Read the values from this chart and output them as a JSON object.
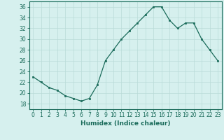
{
  "x": [
    0,
    1,
    2,
    3,
    4,
    5,
    6,
    7,
    8,
    9,
    10,
    11,
    12,
    13,
    14,
    15,
    16,
    17,
    18,
    19,
    20,
    21,
    22,
    23
  ],
  "y": [
    23,
    22,
    21,
    20.5,
    19.5,
    19,
    18.5,
    19,
    21.5,
    26,
    28,
    30,
    31.5,
    33,
    34.5,
    36,
    36,
    33.5,
    32,
    33,
    33,
    30,
    28,
    26
  ],
  "line_color": "#1a6b5a",
  "marker": "s",
  "marker_size": 2.0,
  "bg_color": "#d6f0ee",
  "grid_color": "#b8dbd8",
  "xlabel": "Humidex (Indice chaleur)",
  "xlim": [
    -0.5,
    23.5
  ],
  "ylim": [
    17,
    37
  ],
  "yticks": [
    18,
    20,
    22,
    24,
    26,
    28,
    30,
    32,
    34,
    36
  ],
  "xticks": [
    0,
    1,
    2,
    3,
    4,
    5,
    6,
    7,
    8,
    9,
    10,
    11,
    12,
    13,
    14,
    15,
    16,
    17,
    18,
    19,
    20,
    21,
    22,
    23
  ],
  "tick_label_size": 5.5,
  "xlabel_size": 6.5
}
